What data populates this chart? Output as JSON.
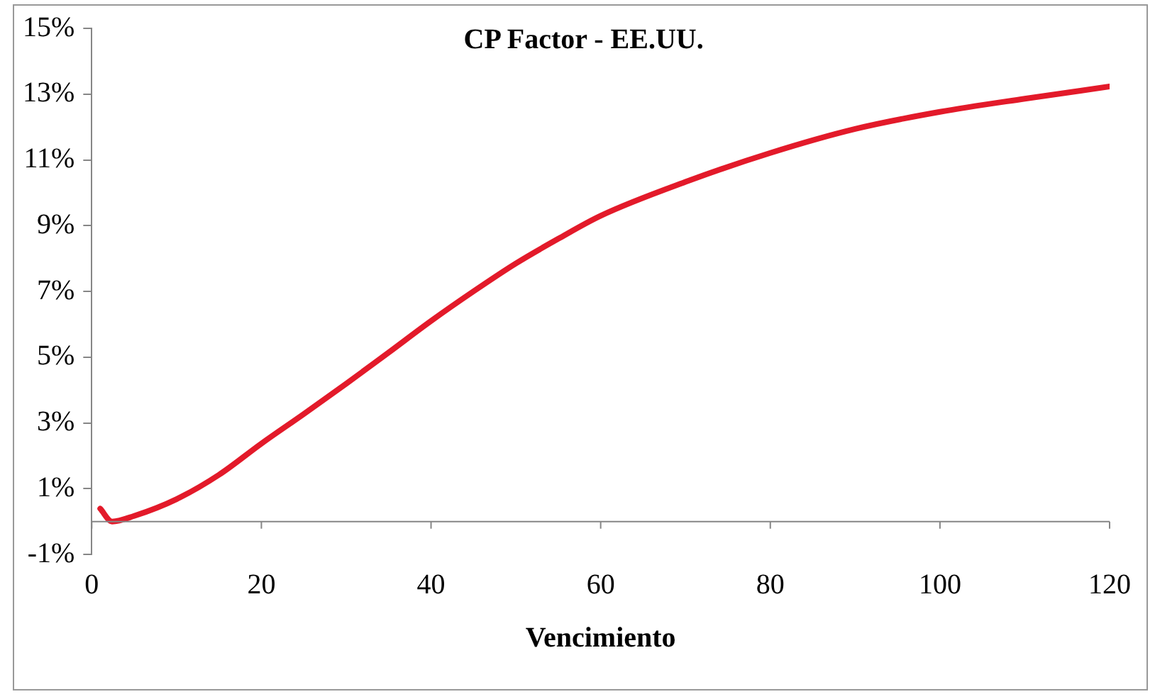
{
  "chart_data": {
    "type": "line",
    "title": "CP Factor - EE.UU.",
    "xlabel": "Vencimiento",
    "x": [
      1,
      2.4,
      5,
      10,
      15,
      20,
      25,
      30,
      35,
      40,
      45,
      50,
      55,
      60,
      70,
      80,
      90,
      100,
      110,
      120
    ],
    "series": [
      {
        "color": "#e31a2a",
        "values": [
          0.39,
          0.0,
          0.17,
          0.68,
          1.42,
          2.37,
          3.27,
          4.19,
          5.14,
          6.1,
          7.0,
          7.85,
          8.6,
          9.3,
          10.33,
          11.21,
          11.94,
          12.46,
          12.86,
          13.23
        ]
      }
    ],
    "xlim": [
      0,
      120
    ],
    "xticks": [
      0,
      20,
      40,
      60,
      80,
      100,
      120
    ],
    "ylim": [
      -1,
      15
    ],
    "yticks": [
      {
        "value": -1,
        "label": "-1%"
      },
      {
        "value": 1,
        "label": "1%"
      },
      {
        "value": 3,
        "label": "3%"
      },
      {
        "value": 5,
        "label": "5%"
      },
      {
        "value": 7,
        "label": "7%"
      },
      {
        "value": 9,
        "label": "9%"
      },
      {
        "value": 11,
        "label": "11%"
      },
      {
        "value": 13,
        "label": "13%"
      },
      {
        "value": 15,
        "label": "15%"
      }
    ],
    "grid": false,
    "legend": false,
    "marker": "none",
    "line_style": "solid"
  }
}
